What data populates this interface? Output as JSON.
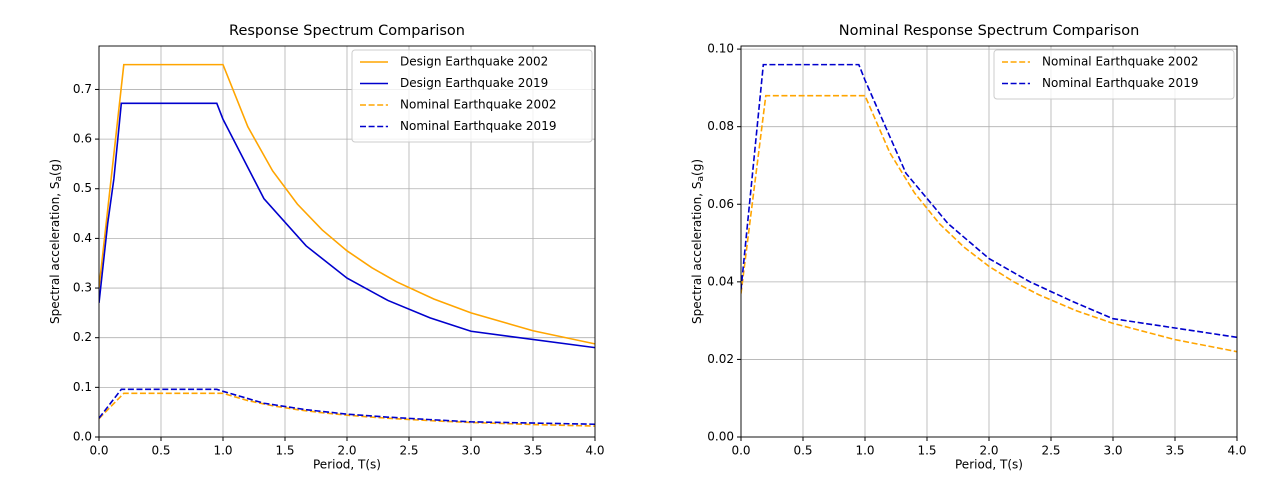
{
  "chart_data": [
    {
      "type": "line",
      "title": "Response Spectrum Comparison",
      "xlabel": "Period, T(s)",
      "ylabel": [
        "Spectral acceleration, S",
        "a",
        "(g)"
      ],
      "xlim": [
        0,
        4
      ],
      "ylim": [
        0,
        0.7875
      ],
      "grid": true,
      "legend": "upper right",
      "xticks": [
        {
          "value": 0,
          "label": "0.0"
        },
        {
          "value": 0.5,
          "label": "0.5"
        },
        {
          "value": 1,
          "label": "1.0"
        },
        {
          "value": 1.5,
          "label": "1.5"
        },
        {
          "value": 2,
          "label": "2.0"
        },
        {
          "value": 2.5,
          "label": "2.5"
        },
        {
          "value": 3,
          "label": "3.0"
        },
        {
          "value": 3.5,
          "label": "3.5"
        },
        {
          "value": 4,
          "label": "4.0"
        }
      ],
      "yticks": [
        {
          "value": 0,
          "label": "0.0"
        },
        0.1,
        0.2,
        0.3,
        0.4,
        0.5,
        0.6,
        0.7
      ],
      "series": [
        {
          "name": "Design Earthquake 2002",
          "color": "#ffa500",
          "linestyle": "solid",
          "x": [
            0,
            0.2,
            1.0,
            1.2,
            1.4,
            1.6,
            1.8,
            2.0,
            2.2,
            2.4,
            2.7,
            3.0,
            3.5,
            4.0
          ],
          "values": [
            0.3,
            0.75,
            0.75,
            0.625,
            0.536,
            0.469,
            0.417,
            0.375,
            0.341,
            0.3125,
            0.278,
            0.25,
            0.214,
            0.1875
          ]
        },
        {
          "name": "Design Earthquake 2019",
          "color": "#0000cd",
          "linestyle": "solid",
          "x": [
            0,
            0.07,
            0.12,
            0.18,
            0.95,
            1.0,
            1.33,
            1.67,
            2.0,
            2.33,
            2.67,
            3.0,
            4.0
          ],
          "values": [
            0.27,
            0.43,
            0.52,
            0.672,
            0.672,
            0.64,
            0.48,
            0.385,
            0.32,
            0.275,
            0.24,
            0.213,
            0.18
          ]
        },
        {
          "name": "Nominal Earthquake 2002",
          "color": "#ffa500",
          "linestyle": "dashed",
          "x": [
            0,
            0.2,
            1.0,
            1.2,
            1.4,
            1.6,
            1.8,
            2.0,
            2.2,
            2.4,
            2.7,
            3.0,
            3.5,
            4.0
          ],
          "values": [
            0.037,
            0.088,
            0.088,
            0.0733,
            0.0629,
            0.055,
            0.0489,
            0.044,
            0.04,
            0.0367,
            0.0326,
            0.0293,
            0.0251,
            0.022
          ]
        },
        {
          "name": "Nominal Earthquake 2019",
          "color": "#0000cd",
          "linestyle": "dashed",
          "x": [
            0,
            0.18,
            0.95,
            1.0,
            1.33,
            1.67,
            2.0,
            2.33,
            2.67,
            3.0,
            4.0
          ],
          "values": [
            0.038,
            0.096,
            0.096,
            0.092,
            0.068,
            0.055,
            0.046,
            0.04,
            0.035,
            0.0305,
            0.0257
          ]
        }
      ]
    },
    {
      "type": "line",
      "title": "Nominal Response Spectrum Comparison",
      "xlabel": "Period, T(s)",
      "ylabel": [
        "Spectral acceleration, S",
        "a",
        "(g)"
      ],
      "xlim": [
        0,
        4
      ],
      "ylim": [
        0,
        0.1008
      ],
      "grid": true,
      "legend": "upper right",
      "xticks": [
        {
          "value": 0,
          "label": "0.0"
        },
        {
          "value": 0.5,
          "label": "0.5"
        },
        {
          "value": 1,
          "label": "1.0"
        },
        {
          "value": 1.5,
          "label": "1.5"
        },
        {
          "value": 2,
          "label": "2.0"
        },
        {
          "value": 2.5,
          "label": "2.5"
        },
        {
          "value": 3,
          "label": "3.0"
        },
        {
          "value": 3.5,
          "label": "3.5"
        },
        {
          "value": 4,
          "label": "4.0"
        }
      ],
      "yticks": [
        {
          "value": 0,
          "label": "0.00"
        },
        {
          "value": 0.02,
          "label": "0.02"
        },
        {
          "value": 0.04,
          "label": "0.04"
        },
        {
          "value": 0.06,
          "label": "0.06"
        },
        {
          "value": 0.08,
          "label": "0.08"
        },
        {
          "value": 0.1,
          "label": "0.10"
        }
      ],
      "series": [
        {
          "name": "Nominal Earthquake 2002",
          "color": "#ffa500",
          "linestyle": "dashed",
          "x": [
            0,
            0.2,
            1.0,
            1.2,
            1.4,
            1.6,
            1.8,
            2.0,
            2.2,
            2.4,
            2.7,
            3.0,
            3.5,
            4.0
          ],
          "values": [
            0.037,
            0.088,
            0.088,
            0.0733,
            0.0629,
            0.055,
            0.0489,
            0.044,
            0.04,
            0.0367,
            0.0326,
            0.0293,
            0.0251,
            0.022
          ]
        },
        {
          "name": "Nominal Earthquake 2019",
          "color": "#0000cd",
          "linestyle": "dashed",
          "x": [
            0,
            0.18,
            0.95,
            1.0,
            1.33,
            1.67,
            2.0,
            2.33,
            2.67,
            3.0,
            4.0
          ],
          "values": [
            0.038,
            0.096,
            0.096,
            0.092,
            0.068,
            0.055,
            0.046,
            0.04,
            0.035,
            0.0305,
            0.0257
          ]
        }
      ]
    }
  ]
}
